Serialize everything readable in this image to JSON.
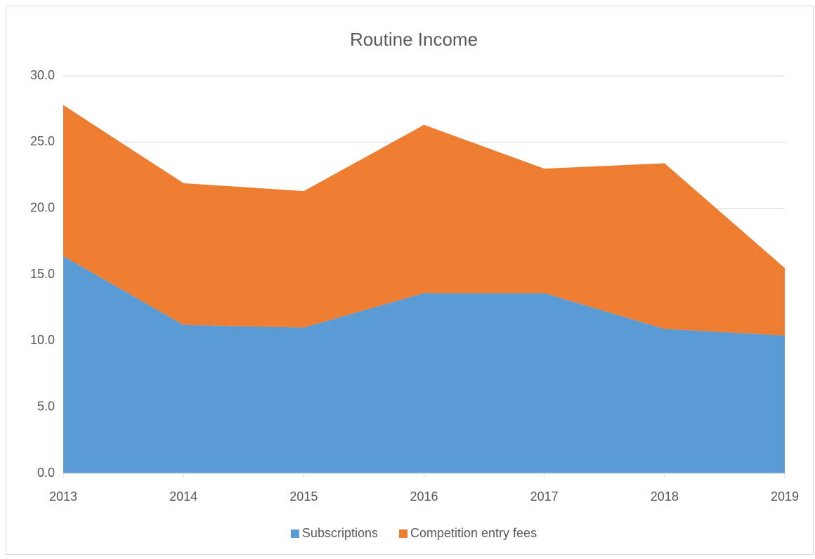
{
  "chart_data": {
    "type": "stacked_area",
    "title": "Routine Income",
    "categories": [
      "2013",
      "2014",
      "2015",
      "2016",
      "2017",
      "2018",
      "2019"
    ],
    "series": [
      {
        "name": "Subscriptions",
        "color": "#5b9bd5",
        "values": [
          16.4,
          11.2,
          11.0,
          13.6,
          13.6,
          10.9,
          10.4
        ]
      },
      {
        "name": "Competition entry fees",
        "color": "#ed7d31",
        "values": [
          11.4,
          10.7,
          10.3,
          12.7,
          9.4,
          12.5,
          5.1
        ]
      }
    ],
    "ylim": [
      0,
      30
    ],
    "yticks": [
      {
        "value": 0,
        "label": "0.0"
      },
      {
        "value": 5,
        "label": "5.0"
      },
      {
        "value": 10,
        "label": "10.0"
      },
      {
        "value": 15,
        "label": "15.0"
      },
      {
        "value": 20,
        "label": "20.0"
      },
      {
        "value": 25,
        "label": "25.0"
      },
      {
        "value": 30,
        "label": "30.0"
      }
    ],
    "grid": true,
    "legend": "bottom"
  }
}
